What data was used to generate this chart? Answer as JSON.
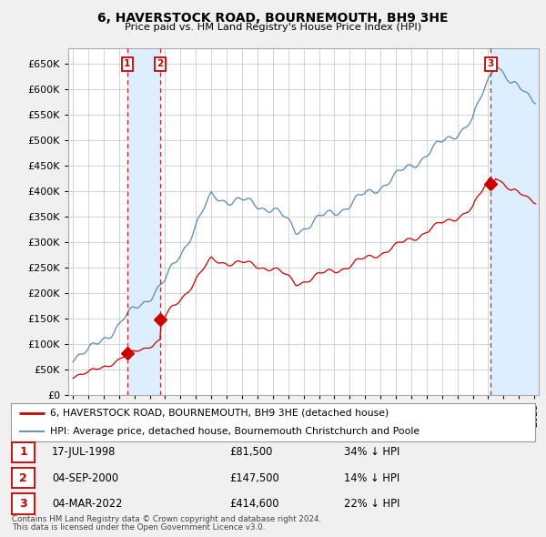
{
  "title": "6, HAVERSTOCK ROAD, BOURNEMOUTH, BH9 3HE",
  "subtitle": "Price paid vs. HM Land Registry's House Price Index (HPI)",
  "legend_line1": "6, HAVERSTOCK ROAD, BOURNEMOUTH, BH9 3HE (detached house)",
  "legend_line2": "HPI: Average price, detached house, Bournemouth Christchurch and Poole",
  "footer1": "Contains HM Land Registry data © Crown copyright and database right 2024.",
  "footer2": "This data is licensed under the Open Government Licence v3.0.",
  "sale_color": "#cc0000",
  "hpi_color": "#5588bb",
  "shade_color": "#ddeeff",
  "background_color": "#f0f0f0",
  "plot_bg_color": "#ffffff",
  "grid_color": "#cccccc",
  "sales": [
    {
      "label": "1",
      "date": "17-JUL-1998",
      "price": 81500,
      "pct": "34% ↓ HPI",
      "year": 1998.54
    },
    {
      "label": "2",
      "date": "04-SEP-2000",
      "price": 147500,
      "pct": "14% ↓ HPI",
      "year": 2000.67
    },
    {
      "label": "3",
      "date": "04-MAR-2022",
      "price": 414600,
      "pct": "22% ↓ HPI",
      "year": 2022.17
    }
  ],
  "ylim": [
    0,
    680000
  ],
  "yticks": [
    0,
    50000,
    100000,
    150000,
    200000,
    250000,
    300000,
    350000,
    400000,
    450000,
    500000,
    550000,
    600000,
    650000
  ],
  "xlim_start": 1994.7,
  "xlim_end": 2025.3
}
